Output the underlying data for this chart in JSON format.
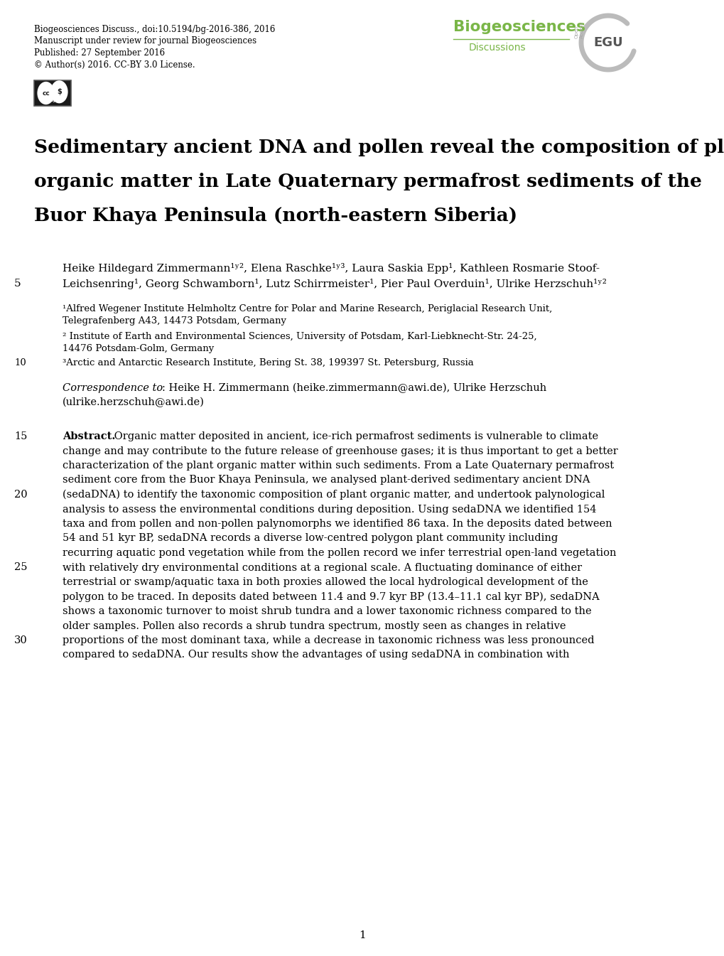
{
  "background_color": "#ffffff",
  "header_line1": "Biogeosciences Discuss., doi:10.5194/bg-2016-386, 2016",
  "header_line2": "Manuscript under review for journal Biogeosciences",
  "header_line3": "Published: 27 September 2016",
  "header_line4": "© Author(s) 2016. CC-BY 3.0 License.",
  "title_line1": "Sedimentary ancient DNA and pollen reveal the composition of plant",
  "title_line2": "organic matter in Late Quaternary permafrost sediments of the",
  "title_line3": "Buor Khaya Peninsula (north-eastern Siberia)",
  "authors_line1": "Heike Hildegard Zimmermann$^{1,2}$, Elena Raschke$^{1,3}$, Laura Saskia Epp$^{1}$, Kathleen Rosmarie Stoof-",
  "authors_line2": "Leichsenring$^{1}$, Georg Schwamborn$^{1}$, Lutz Schirrmeister$^{1}$, Pier Paul Overduin$^{1}$, Ulrike Herzschuh$^{1,2}$",
  "affil1": "$^{1}$Alfred Wegener Institute Helmholtz Centre for Polar and Marine Research, Periglacial Research Unit,",
  "affil1b": "Telegrafenberg A43, 14473 Potsdam, Germany",
  "affil2": "$^{2}$ Institute of Earth and Environmental Sciences, University of Potsdam, Karl-Liebknecht-Str. 24-25,",
  "affil2b": "14476 Potsdam-Golm, Germany",
  "affil3": "$^{3}$Arctic and Antarctic Research Institute, Bering St. 38, 199397 St. Petersburg, Russia",
  "corr_italic": "Correspondence to",
  "corr_rest1": ": Heike H. Zimmermann (heike.zimmermann@awi.de), Ulrike Herzschuh",
  "corr_rest2": "(ulrike.herzschuh@awi.de)",
  "abstract_bold": "Abstract.",
  "abstract_text1": " Organic matter deposited in ancient, ice-rich permafrost sediments is vulnerable to climate",
  "abstract_text2": "change and may contribute to the future release of greenhouse gases; it is thus important to get a better",
  "abstract_text3": "characterization of the plant organic matter within such sediments. From a Late Quaternary permafrost",
  "abstract_text4": "sediment core from the Buor Khaya Peninsula, we analysed plant-derived sedimentary ancient DNA",
  "abstract_text5": "(sedaDNA) to identify the taxonomic composition of plant organic matter, and undertook palynological",
  "abstract_text6": "analysis to assess the environmental conditions during deposition. Using sedaDNA we identified 154",
  "abstract_text7": "taxa and from pollen and non-pollen palynomorphs we identified 86 taxa. In the deposits dated between",
  "abstract_text8": "54 and 51 kyr BP, sedaDNA records a diverse low-centred polygon plant community including",
  "abstract_text9": "recurring aquatic pond vegetation while from the pollen record we infer terrestrial open-land vegetation",
  "abstract_text10": "with relatively dry environmental conditions at a regional scale. A fluctuating dominance of either",
  "abstract_text11": "terrestrial or swamp/aquatic taxa in both proxies allowed the local hydrological development of the",
  "abstract_text12": "polygon to be traced. In deposits dated between 11.4 and 9.7 kyr BP (13.4–11.1 cal kyr BP), sedaDNA",
  "abstract_text13": "shows a taxonomic turnover to moist shrub tundra and a lower taxonomic richness compared to the",
  "abstract_text14": "older samples. Pollen also records a shrub tundra spectrum, mostly seen as changes in relative",
  "abstract_text15": "proportions of the most dominant taxa, while a decrease in taxonomic richness was less pronounced",
  "abstract_text16": "compared to sedaDNA. Our results show the advantages of using sedaDNA in combination with",
  "page_number": "1",
  "biogeosciences_color": "#7ab648",
  "discussions_color": "#7ab648"
}
